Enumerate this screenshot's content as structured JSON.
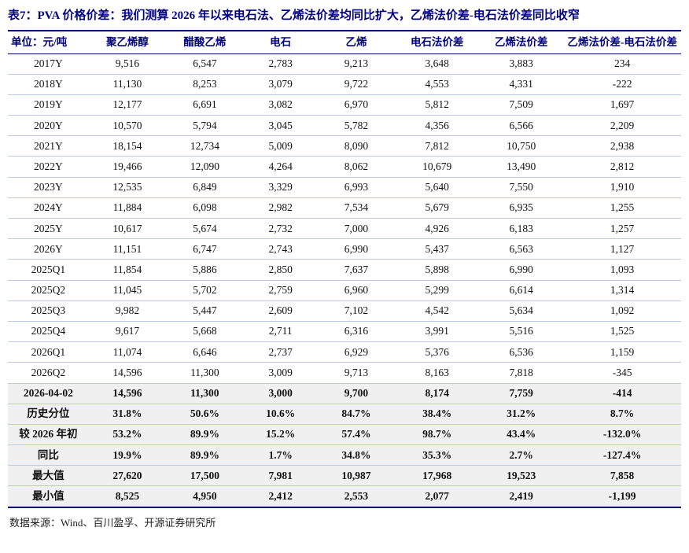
{
  "title": "表7：PVA 价格价差：我们测算 2026 年以来电石法、乙烯法价差均同比扩大，乙烯法价差-电石法价差同比收窄",
  "source": "数据来源：Wind、百川盈孚、开源证券研究所",
  "colors": {
    "navy": "#000080",
    "row_line": "#bcc8e4",
    "emphasis_bg": "#f0f0f0",
    "body_text": "#111111"
  },
  "table": {
    "headers": [
      "单位：元/吨",
      "聚乙烯醇",
      "醋酸乙烯",
      "电石",
      "乙烯",
      "电石法价差",
      "乙烯法价差",
      "乙烯法价差-电石法价差"
    ],
    "rows": [
      {
        "label": "2017Y",
        "values": [
          "9,516",
          "6,547",
          "2,783",
          "9,213",
          "3,648",
          "3,883",
          "234"
        ],
        "emphasis": false
      },
      {
        "label": "2018Y",
        "values": [
          "11,130",
          "8,253",
          "3,079",
          "9,722",
          "4,553",
          "4,331",
          "-222"
        ],
        "emphasis": false
      },
      {
        "label": "2019Y",
        "values": [
          "12,177",
          "6,691",
          "3,082",
          "6,970",
          "5,812",
          "7,509",
          "1,697"
        ],
        "emphasis": false
      },
      {
        "label": "2020Y",
        "values": [
          "10,570",
          "5,794",
          "3,045",
          "5,782",
          "4,356",
          "6,566",
          "2,209"
        ],
        "emphasis": false
      },
      {
        "label": "2021Y",
        "values": [
          "18,154",
          "12,734",
          "5,009",
          "8,090",
          "7,812",
          "10,750",
          "2,938"
        ],
        "emphasis": false
      },
      {
        "label": "2022Y",
        "values": [
          "19,466",
          "12,090",
          "4,264",
          "8,062",
          "10,679",
          "13,490",
          "2,812"
        ],
        "emphasis": false
      },
      {
        "label": "2023Y",
        "values": [
          "12,535",
          "6,849",
          "3,329",
          "6,993",
          "5,640",
          "7,550",
          "1,910"
        ],
        "emphasis": false
      },
      {
        "label": "2024Y",
        "values": [
          "11,884",
          "6,098",
          "2,982",
          "7,534",
          "5,679",
          "6,935",
          "1,255"
        ],
        "emphasis": false
      },
      {
        "label": "2025Y",
        "values": [
          "10,617",
          "5,674",
          "2,732",
          "7,000",
          "4,926",
          "6,183",
          "1,257"
        ],
        "emphasis": false
      },
      {
        "label": "2026Y",
        "values": [
          "11,151",
          "6,747",
          "2,743",
          "6,990",
          "5,437",
          "6,563",
          "1,127"
        ],
        "emphasis": false
      },
      {
        "label": "2025Q1",
        "values": [
          "11,854",
          "5,886",
          "2,850",
          "7,637",
          "5,898",
          "6,990",
          "1,093"
        ],
        "emphasis": false
      },
      {
        "label": "2025Q2",
        "values": [
          "11,045",
          "5,702",
          "2,759",
          "6,960",
          "5,299",
          "6,614",
          "1,314"
        ],
        "emphasis": false
      },
      {
        "label": "2025Q3",
        "values": [
          "9,982",
          "5,447",
          "2,609",
          "7,102",
          "4,542",
          "5,634",
          "1,092"
        ],
        "emphasis": false
      },
      {
        "label": "2025Q4",
        "values": [
          "9,617",
          "5,668",
          "2,711",
          "6,316",
          "3,991",
          "5,516",
          "1,525"
        ],
        "emphasis": false
      },
      {
        "label": "2026Q1",
        "values": [
          "11,074",
          "6,646",
          "2,737",
          "6,929",
          "5,376",
          "6,536",
          "1,159"
        ],
        "emphasis": false
      },
      {
        "label": "2026Q2",
        "values": [
          "14,596",
          "11,300",
          "3,009",
          "9,713",
          "8,163",
          "7,818",
          "-345"
        ],
        "emphasis": false
      },
      {
        "label": "2026-04-02",
        "values": [
          "14,596",
          "11,300",
          "3,000",
          "9,700",
          "8,174",
          "7,759",
          "-414"
        ],
        "emphasis": true
      },
      {
        "label": "历史分位",
        "values": [
          "31.8%",
          "50.6%",
          "10.6%",
          "84.7%",
          "38.4%",
          "31.2%",
          "8.7%"
        ],
        "emphasis": true
      },
      {
        "label": "较 2026 年初",
        "values": [
          "53.2%",
          "89.9%",
          "15.2%",
          "57.4%",
          "98.7%",
          "43.4%",
          "-132.0%"
        ],
        "emphasis": true
      },
      {
        "label": "同比",
        "values": [
          "19.9%",
          "89.9%",
          "1.7%",
          "34.8%",
          "35.3%",
          "2.7%",
          "-127.4%"
        ],
        "emphasis": true
      },
      {
        "label": "最大值",
        "values": [
          "27,620",
          "17,500",
          "7,981",
          "10,987",
          "17,968",
          "19,523",
          "7,858"
        ],
        "emphasis": true
      },
      {
        "label": "最小值",
        "values": [
          "8,525",
          "4,950",
          "2,412",
          "2,553",
          "2,077",
          "2,419",
          "-1,199"
        ],
        "emphasis": true
      }
    ]
  }
}
